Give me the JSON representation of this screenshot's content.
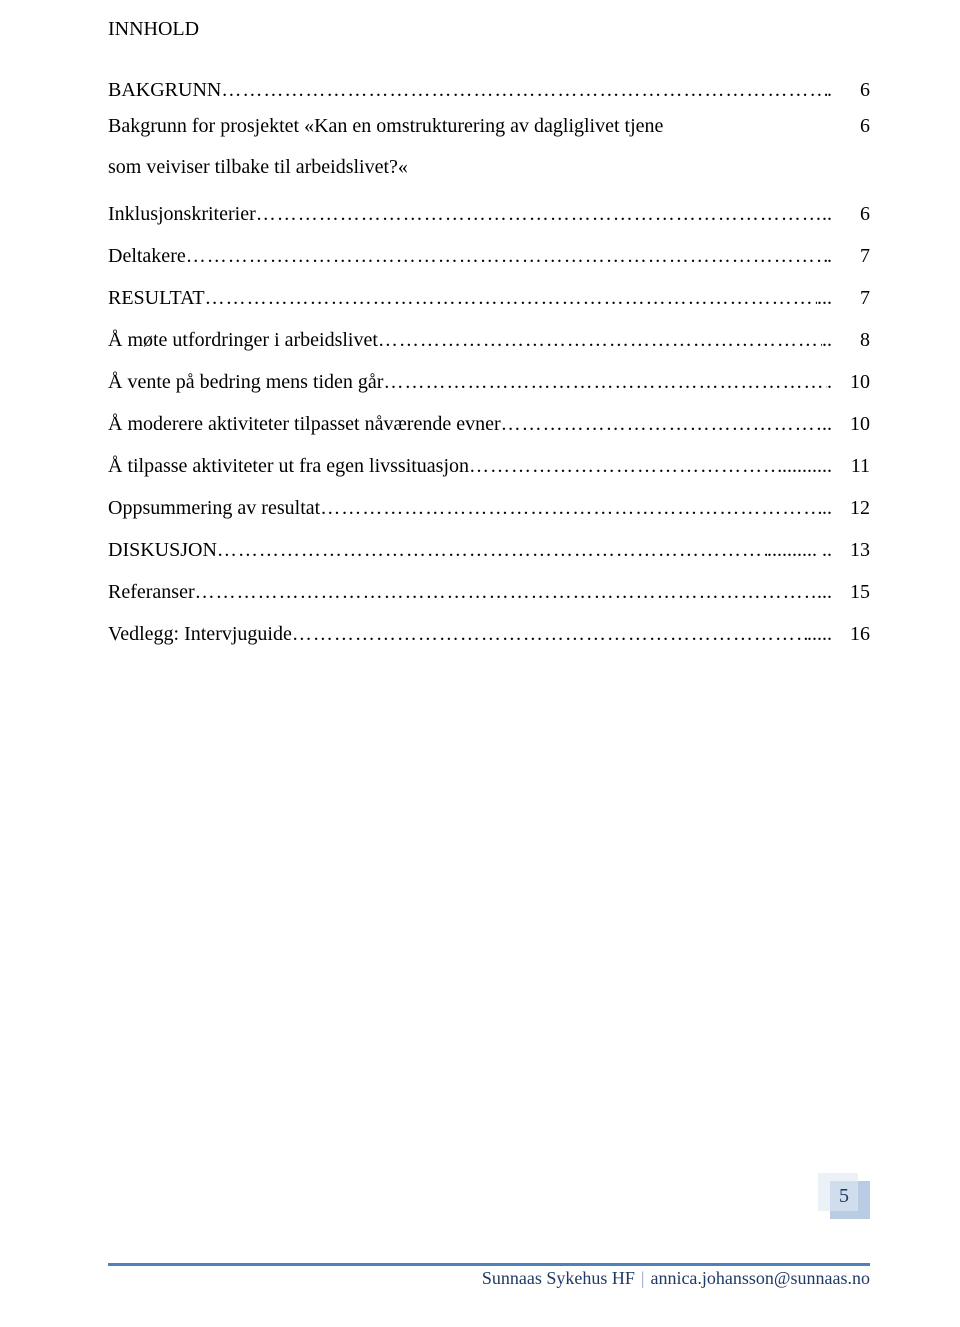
{
  "colors": {
    "text": "#000000",
    "footer_text": "#1f3864",
    "footer_border": "#4f81bd",
    "footer_sep": "#8ba6c8",
    "pagebox_back": "#b8cce4",
    "pagebox_front": "#e0e8f2"
  },
  "heading": "INNHOLD",
  "toc": [
    {
      "label": "BAKGRUNN",
      "leader": ".",
      "page": "6"
    },
    {
      "label_l1": "Bakgrunn for prosjektet «Kan en omstrukturering av dagliglivet tjene",
      "label_l2": "som veiviser tilbake til arbeidslivet?«",
      "page": "6",
      "two_line": true
    },
    {
      "label": "Inklusjonskriterier",
      "leader": "..",
      "page": "6"
    },
    {
      "label": "Deltakere",
      "leader": ".",
      "page": "7"
    },
    {
      "label": "RESULTAT",
      "leader": "...",
      "page": "7"
    },
    {
      "label": "Å møte utfordringer i arbeidslivet",
      "leader": "..",
      "page": "8"
    },
    {
      "label": "Å vente på bedring mens tiden går",
      "leader": ".",
      "page": "10"
    },
    {
      "label": "Å moderere aktiviteter tilpasset nåværende evner",
      "leader": "..",
      "page": "10"
    },
    {
      "label": "Å tilpasse aktiviteter ut fra egen livssituasjon",
      "leader": "..........",
      "page": "11"
    },
    {
      "label": "Oppsummering av resultat",
      "leader": "..",
      "page": "12"
    },
    {
      "label": "DISKUSJON",
      "leader": ".......... ..",
      "page": "13"
    },
    {
      "label": "Referanser",
      "leader": "...",
      "page": "15"
    },
    {
      "label": "Vedlegg: Intervjuguide",
      "leader": ".....",
      "page": "16"
    }
  ],
  "page_number": "5",
  "footer": {
    "org": "Sunnaas Sykehus HF",
    "email": "annica.johansson@sunnaas.no"
  }
}
